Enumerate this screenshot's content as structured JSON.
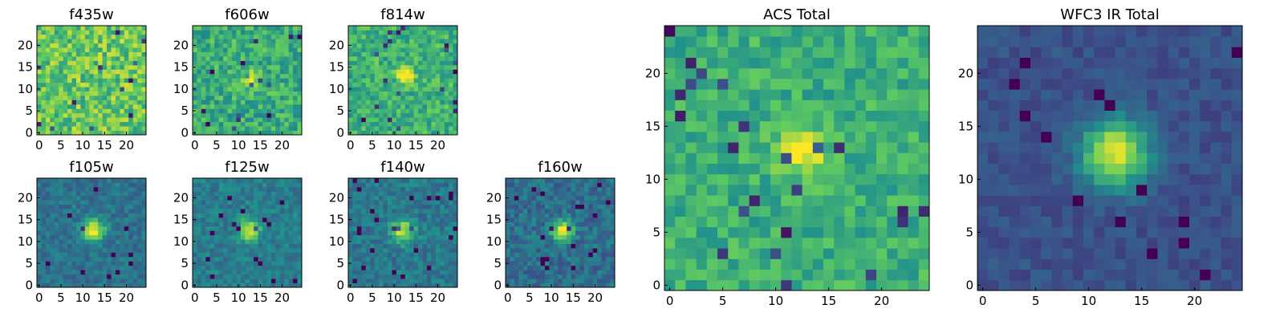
{
  "figure": {
    "colormap": [
      "#440154",
      "#3b528b",
      "#21918c",
      "#5ec962",
      "#fde725"
    ]
  },
  "chart_data": [
    {
      "id": "f435w",
      "type": "heatmap",
      "title": "f435w",
      "grid_size": 25,
      "xlim": [
        0,
        24
      ],
      "ylim": [
        0,
        24
      ],
      "x_ticks": [
        "0",
        "5",
        "10",
        "15",
        "20"
      ],
      "y_ticks": [
        "0",
        "5",
        "10",
        "15",
        "20"
      ],
      "source": {
        "center": [
          12,
          12
        ],
        "peak": 0.0,
        "sigma": 2.0
      },
      "background": 0.74,
      "noise": 0.2
    },
    {
      "id": "f606w",
      "type": "heatmap",
      "title": "f606w",
      "grid_size": 25,
      "xlim": [
        0,
        24
      ],
      "ylim": [
        0,
        24
      ],
      "x_ticks": [
        "0",
        "5",
        "10",
        "15",
        "20"
      ],
      "y_ticks": [
        "0",
        "5",
        "10",
        "15",
        "20"
      ],
      "source": {
        "center": [
          12.5,
          12.5
        ],
        "peak": 0.35,
        "sigma": 1.2
      },
      "background": 0.62,
      "noise": 0.17
    },
    {
      "id": "f814w",
      "type": "heatmap",
      "title": "f814w",
      "grid_size": 25,
      "xlim": [
        0,
        24
      ],
      "ylim": [
        0,
        24
      ],
      "x_ticks": [
        "0",
        "5",
        "10",
        "15",
        "20"
      ],
      "y_ticks": [
        "0",
        "5",
        "10",
        "15",
        "20"
      ],
      "source": {
        "center": [
          12.5,
          13.0
        ],
        "peak": 0.4,
        "sigma": 1.3
      },
      "background": 0.64,
      "noise": 0.15
    },
    {
      "id": "f105w",
      "type": "heatmap",
      "title": "f105w",
      "grid_size": 25,
      "xlim": [
        0,
        24
      ],
      "ylim": [
        0,
        24
      ],
      "x_ticks": [
        "0",
        "5",
        "10",
        "15",
        "20"
      ],
      "y_ticks": [
        "0",
        "5",
        "10",
        "15",
        "20"
      ],
      "source": {
        "center": [
          12.5,
          12.5
        ],
        "peak": 0.6,
        "sigma": 1.8
      },
      "background": 0.38,
      "noise": 0.1
    },
    {
      "id": "f125w",
      "type": "heatmap",
      "title": "f125w",
      "grid_size": 25,
      "xlim": [
        0,
        24
      ],
      "ylim": [
        0,
        24
      ],
      "x_ticks": [
        "0",
        "5",
        "10",
        "15",
        "20"
      ],
      "y_ticks": [
        "0",
        "5",
        "10",
        "15",
        "20"
      ],
      "source": {
        "center": [
          12.5,
          12.5
        ],
        "peak": 0.55,
        "sigma": 1.7
      },
      "background": 0.42,
      "noise": 0.1
    },
    {
      "id": "f140w",
      "type": "heatmap",
      "title": "f140w",
      "grid_size": 25,
      "xlim": [
        0,
        24
      ],
      "ylim": [
        0,
        24
      ],
      "x_ticks": [
        "0",
        "5",
        "10",
        "15",
        "20"
      ],
      "y_ticks": [
        "0",
        "5",
        "10",
        "15",
        "20"
      ],
      "source": {
        "center": [
          12.0,
          12.5
        ],
        "peak": 0.55,
        "sigma": 1.8
      },
      "background": 0.4,
      "noise": 0.11
    },
    {
      "id": "f160w",
      "type": "heatmap",
      "title": "f160w",
      "grid_size": 25,
      "xlim": [
        0,
        24
      ],
      "ylim": [
        0,
        24
      ],
      "x_ticks": [
        "0",
        "5",
        "10",
        "15",
        "20"
      ],
      "y_ticks": [
        "0",
        "5",
        "10",
        "15",
        "20"
      ],
      "source": {
        "center": [
          12.5,
          12.5
        ],
        "peak": 0.6,
        "sigma": 1.7
      },
      "background": 0.36,
      "noise": 0.12
    },
    {
      "id": "acs-total",
      "type": "heatmap",
      "title": "ACS Total",
      "grid_size": 25,
      "xlim": [
        0,
        24
      ],
      "ylim": [
        0,
        24
      ],
      "x_ticks": [
        "0",
        "5",
        "10",
        "15",
        "20"
      ],
      "y_ticks": [
        "0",
        "5",
        "10",
        "15",
        "20"
      ],
      "source": {
        "center": [
          12.5,
          12.5
        ],
        "peak": 0.4,
        "sigma": 1.5
      },
      "background": 0.63,
      "noise": 0.13
    },
    {
      "id": "wfc3-ir-total",
      "type": "heatmap",
      "title": "WFC3 IR Total",
      "grid_size": 25,
      "xlim": [
        0,
        24
      ],
      "ylim": [
        0,
        24
      ],
      "x_ticks": [
        "0",
        "5",
        "10",
        "15",
        "20"
      ],
      "y_ticks": [
        "0",
        "5",
        "10",
        "15",
        "20"
      ],
      "source": {
        "center": [
          12.5,
          12.5
        ],
        "peak": 0.72,
        "sigma": 2.2
      },
      "background": 0.25,
      "noise": 0.06
    }
  ]
}
